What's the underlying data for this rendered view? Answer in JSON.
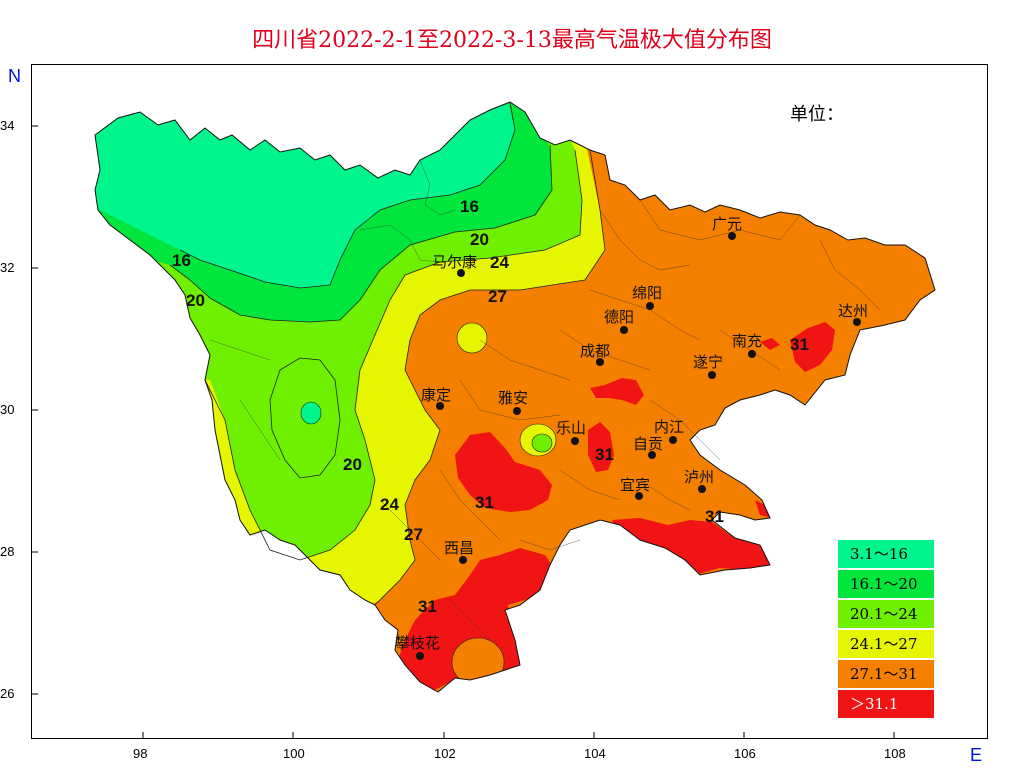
{
  "title": "四川省2022-2-1至2022-3-13最高气温极大值分布图",
  "unit_label": "单位：",
  "compass": {
    "north": "N",
    "east": "E"
  },
  "axes": {
    "x_ticks": [
      "98",
      "100",
      "102",
      "104",
      "106",
      "108"
    ],
    "y_ticks": [
      "34",
      "32",
      "30",
      "28",
      "26"
    ]
  },
  "legend": [
    {
      "label": "3.1～16",
      "color": "#00f58c"
    },
    {
      "label": "16.1～20",
      "color": "#00e63c"
    },
    {
      "label": "20.1～24",
      "color": "#6ef000"
    },
    {
      "label": "24.1～27",
      "color": "#e6f500"
    },
    {
      "label": "27.1～31",
      "color": "#f58000"
    },
    {
      "label": "＞31.1",
      "color": "#f01414"
    }
  ],
  "cities": [
    {
      "name": "广元"
    },
    {
      "name": "达州"
    },
    {
      "name": "绵阳"
    },
    {
      "name": "德阳"
    },
    {
      "name": "南充"
    },
    {
      "name": "成都"
    },
    {
      "name": "遂宁"
    },
    {
      "name": "马尔康"
    },
    {
      "name": "康定"
    },
    {
      "name": "雅安"
    },
    {
      "name": "乐山"
    },
    {
      "name": "内江"
    },
    {
      "name": "自贡"
    },
    {
      "name": "泸州"
    },
    {
      "name": "宜宾"
    },
    {
      "name": "西昌"
    },
    {
      "name": "攀枝花"
    }
  ],
  "contour_labels": [
    "16",
    "16",
    "20",
    "20",
    "24",
    "27",
    "20",
    "24",
    "27",
    "31",
    "31",
    "31",
    "31",
    "31"
  ]
}
